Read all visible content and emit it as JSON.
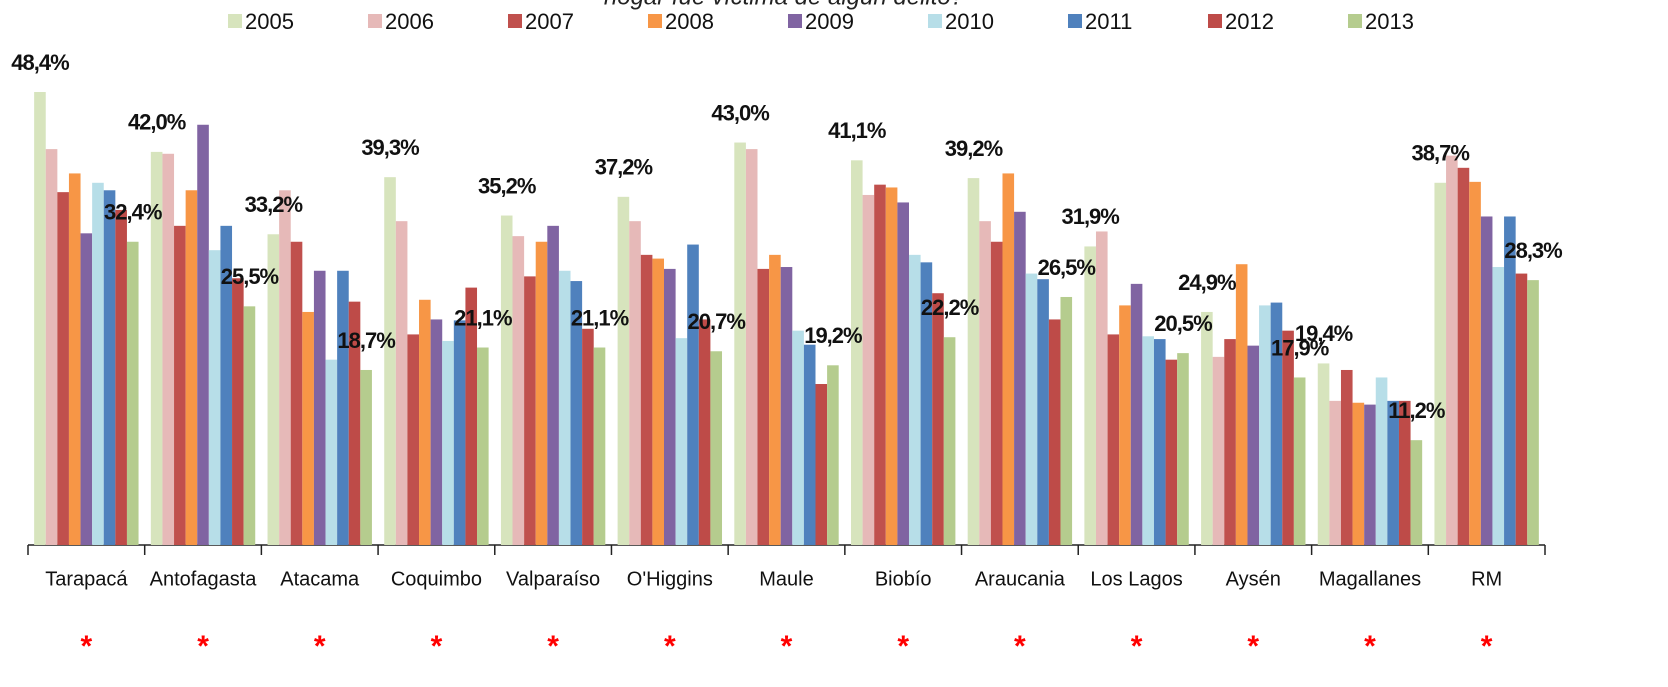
{
  "chart_data": {
    "type": "bar",
    "title": "hogar fue víctima de algún delito?",
    "categories": [
      "Tarapacá",
      "Antofagasta",
      "Atacama",
      "Coquimbo",
      "Valparaíso",
      "O'Higgins",
      "Maule",
      "Biobío",
      "Araucania",
      "Los Lagos",
      "Aysén",
      "Magallanes",
      "RM"
    ],
    "markers": [
      "*",
      "*",
      "*",
      "*",
      "*",
      "*",
      "*",
      "*",
      "*",
      "*",
      "*",
      "*",
      "*"
    ],
    "series": [
      {
        "name": "2005",
        "color": "#d7e4bd",
        "values": [
          48.4,
          42.0,
          33.2,
          39.3,
          35.2,
          37.2,
          43.0,
          41.1,
          39.2,
          31.9,
          24.9,
          19.4,
          38.7
        ],
        "value_labels": [
          "48,4%",
          "42,0%",
          "33,2%",
          "39,3%",
          "35,2%",
          "37,2%",
          "43,0%",
          "41,1%",
          "39,2%",
          "31,9%",
          "24,9%",
          "19,4%",
          "38,7%"
        ]
      },
      {
        "name": "2006",
        "color": "#e6b9b8",
        "values": [
          42.3,
          41.8,
          37.9,
          34.6,
          33.0,
          34.6,
          42.3,
          37.4,
          34.6,
          33.5,
          20.1,
          15.4,
          41.6
        ]
      },
      {
        "name": "2007",
        "color": "#c0504d",
        "values": [
          37.7,
          34.1,
          32.4,
          22.5,
          28.7,
          31.0,
          29.5,
          38.5,
          32.4,
          22.5,
          22.0,
          18.7,
          40.3
        ]
      },
      {
        "name": "2008",
        "color": "#f79646",
        "values": [
          39.7,
          37.9,
          24.9,
          26.2,
          32.4,
          30.6,
          31.0,
          38.2,
          39.7,
          25.6,
          30.0,
          15.2,
          38.8
        ]
      },
      {
        "name": "2009",
        "color": "#8064a2",
        "values": [
          33.3,
          44.9,
          29.3,
          24.1,
          34.1,
          29.5,
          29.7,
          36.6,
          35.6,
          27.9,
          21.3,
          15.0,
          35.1
        ]
      },
      {
        "name": "2010",
        "color": "#b7dee8",
        "values": [
          38.7,
          31.5,
          19.8,
          21.8,
          29.3,
          22.1,
          22.9,
          31.0,
          29.0,
          22.3,
          25.6,
          17.9,
          29.7
        ]
      },
      {
        "name": "2011",
        "color": "#4f81bd",
        "values": [
          37.9,
          34.1,
          29.3,
          24.0,
          28.2,
          32.1,
          21.4,
          30.2,
          28.4,
          22.0,
          25.9,
          15.4,
          35.1
        ]
      },
      {
        "name": "2012",
        "color": "#be4b48",
        "values": [
          35.8,
          28.5,
          26.0,
          27.5,
          23.1,
          24.1,
          17.2,
          26.9,
          24.1,
          19.8,
          22.9,
          15.4,
          29.0
        ]
      },
      {
        "name": "2013",
        "color": "#b5cc8e",
        "values": [
          32.4,
          25.5,
          18.7,
          21.1,
          21.1,
          20.7,
          19.2,
          22.2,
          26.5,
          20.5,
          17.9,
          11.2,
          28.3
        ],
        "value_labels": [
          "32,4%",
          "25,5%",
          "18,7%",
          "21,1%",
          "21,1%",
          "20,7%",
          "19,2%",
          "22,2%",
          "26,5%",
          "20,5%",
          "17,9%",
          "11,2%",
          "28,3%"
        ]
      }
    ]
  }
}
